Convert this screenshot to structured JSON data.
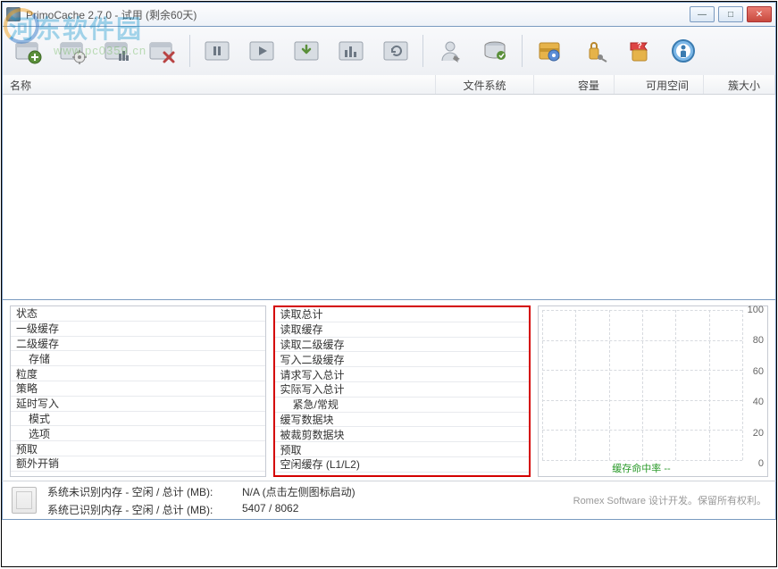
{
  "window": {
    "title": "PrimoCache 2.7.0 - 试用 (剩余60天)"
  },
  "watermark": {
    "main": "河东软件园",
    "url": "www.pc0359.cn"
  },
  "toolbar_icons": [
    "new-task",
    "config-task",
    "stats-task",
    "delete-task",
    "pause-all",
    "resume-all",
    "download-data",
    "bar-stats",
    "settings-cfg",
    "user-tool",
    "disk-tool",
    "lock-tool",
    "key-tool",
    "help",
    "info"
  ],
  "columns": {
    "name": "名称",
    "fs": "文件系统",
    "cap": "容量",
    "free": "可用空间",
    "cluster": "簇大小"
  },
  "left_panel": [
    {
      "label": "状态"
    },
    {
      "label": "一级缓存"
    },
    {
      "label": "二级缓存"
    },
    {
      "label": "存储",
      "indent": true
    },
    {
      "label": "粒度"
    },
    {
      "label": "策略"
    },
    {
      "label": "延时写入"
    },
    {
      "label": "模式",
      "indent": true
    },
    {
      "label": "选项",
      "indent": true
    },
    {
      "label": "预取"
    },
    {
      "label": "额外开销"
    }
  ],
  "mid_panel": [
    {
      "label": "读取总计"
    },
    {
      "label": "读取缓存"
    },
    {
      "label": "读取二级缓存"
    },
    {
      "label": "写入二级缓存"
    },
    {
      "label": "请求写入总计"
    },
    {
      "label": "实际写入总计"
    },
    {
      "label": "紧急/常规",
      "indent": true
    },
    {
      "label": "缓写数据块"
    },
    {
      "label": "被裁剪数据块"
    },
    {
      "label": "预取"
    },
    {
      "label": "空闲缓存 (L1/L2)"
    }
  ],
  "chart": {
    "ymin": 0,
    "ymax": 100,
    "ystep": 20,
    "grid_color": "#d7dadf",
    "caption_label": "缓存命中率",
    "caption_value": "--",
    "caption_color": "#2a9a2a"
  },
  "status": {
    "line1_label": "系统未识别内存 - 空闲 / 总计 (MB):",
    "line1_value": "N/A (点击左侧图标启动)",
    "line2_label": "系统已识别内存 - 空闲 / 总计 (MB):",
    "line2_value": "5407 / 8062",
    "footer": "Romex Software 设计开发。保留所有权利。"
  }
}
